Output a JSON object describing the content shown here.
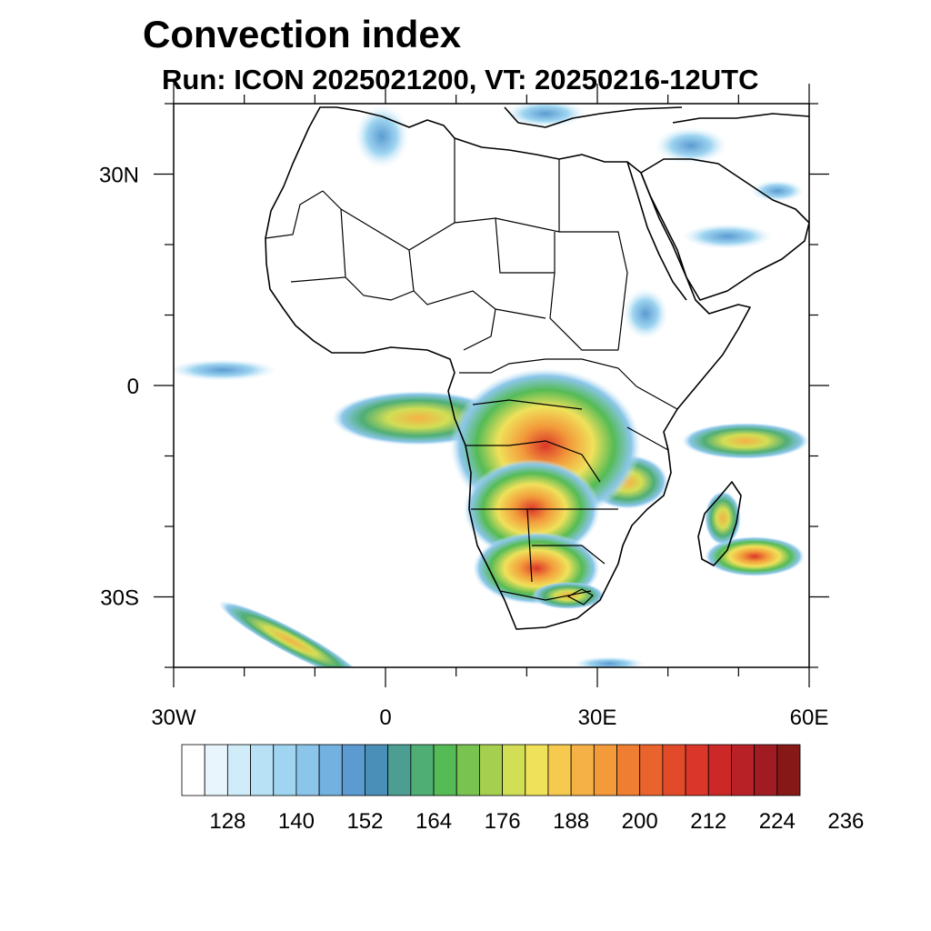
{
  "title": "Convection index",
  "subtitle": "Run: ICON 2025021200,  VT: 20250216-12UTC",
  "map": {
    "lon_range": [
      -30,
      60
    ],
    "lat_range": [
      -40,
      40
    ],
    "lon_ticks": [
      {
        "value": -30,
        "label": "30W"
      },
      {
        "value": 0,
        "label": "0"
      },
      {
        "value": 30,
        "label": "30E"
      },
      {
        "value": 60,
        "label": "60E"
      }
    ],
    "lat_ticks": [
      {
        "value": 30,
        "label": "30N"
      },
      {
        "value": 0,
        "label": "0"
      },
      {
        "value": -30,
        "label": "30S"
      }
    ]
  },
  "colorbar": {
    "tick_labels": [
      "128",
      "140",
      "152",
      "164",
      "176",
      "188",
      "200",
      "212",
      "224",
      "236"
    ],
    "colors": [
      "#ffffff",
      "#e8f5fc",
      "#d0ecf8",
      "#b8e1f6",
      "#9fd5f1",
      "#8bc6ea",
      "#73b1e0",
      "#5b9bd1",
      "#4a8fb8",
      "#4c9e93",
      "#4fae74",
      "#55bb55",
      "#79c451",
      "#a5cf4e",
      "#d2de55",
      "#f0e15a",
      "#f6c94f",
      "#f5b145",
      "#f39a3b",
      "#ef7e33",
      "#e9632d",
      "#e24b2a",
      "#da3629",
      "#cc2828",
      "#b82126",
      "#a01c22",
      "#871818"
    ]
  },
  "chart_data": {
    "type": "heatmap",
    "title": "Convection index",
    "subtitle": "Run: ICON 2025021200,  VT: 20250216-12UTC",
    "x_range": [
      -30,
      60
    ],
    "y_range": [
      -40,
      40
    ],
    "colorbar_levels": [
      128,
      140,
      152,
      164,
      176,
      188,
      200,
      212,
      224,
      236
    ],
    "regions": [
      {
        "lon": 21,
        "lat": -10,
        "value": 200
      },
      {
        "lon": 20,
        "lat": -12,
        "value": 212
      },
      {
        "lon": 14,
        "lat": -5,
        "value": 190
      },
      {
        "lon": 7,
        "lat": -3,
        "value": 176
      },
      {
        "lon": 20,
        "lat": -26,
        "value": 224
      },
      {
        "lon": 24,
        "lat": -30,
        "value": 200
      },
      {
        "lon": 53,
        "lat": -23,
        "value": 212
      },
      {
        "lon": 50,
        "lat": -7,
        "value": 176
      },
      {
        "lon": -26,
        "lat": -38,
        "value": 176
      },
      {
        "lon": 38,
        "lat": 10,
        "value": 152
      },
      {
        "lon": -22,
        "lat": 2,
        "value": 140
      }
    ]
  }
}
